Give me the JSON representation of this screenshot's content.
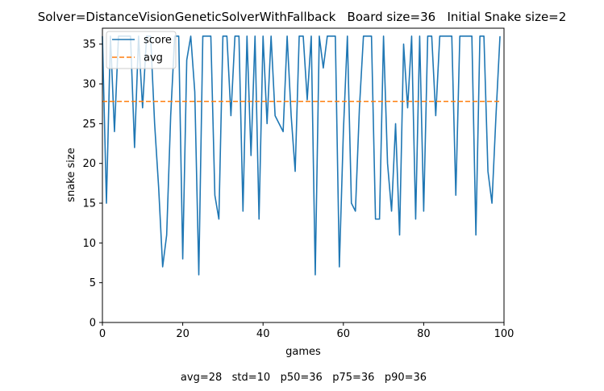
{
  "chart_data": {
    "type": "line",
    "title": "Solver=DistanceVisionGeneticSolverWithFallback   Board size=36   Initial Snake size=2",
    "xlabel": "games",
    "ylabel": "snake size",
    "xlim": [
      0,
      100
    ],
    "ylim": [
      0,
      37
    ],
    "xticks": [
      0,
      20,
      40,
      60,
      80,
      100
    ],
    "yticks": [
      0,
      5,
      10,
      15,
      20,
      25,
      30,
      35
    ],
    "legend_position": "top-left",
    "footer": "avg=28   std=10   p50=36   p75=36   p90=36",
    "series": [
      {
        "name": "score",
        "style": "solid",
        "color": "#1f77b4",
        "x": [
          0,
          1,
          2,
          3,
          4,
          5,
          6,
          7,
          8,
          9,
          10,
          11,
          12,
          13,
          14,
          15,
          16,
          17,
          18,
          19,
          20,
          21,
          22,
          23,
          24,
          25,
          26,
          27,
          28,
          29,
          30,
          31,
          32,
          33,
          34,
          35,
          36,
          37,
          38,
          39,
          40,
          41,
          42,
          43,
          44,
          45,
          46,
          47,
          48,
          49,
          50,
          51,
          52,
          53,
          54,
          55,
          56,
          57,
          58,
          59,
          60,
          61,
          62,
          63,
          64,
          65,
          66,
          67,
          68,
          69,
          70,
          71,
          72,
          73,
          74,
          75,
          76,
          77,
          78,
          79,
          80,
          81,
          82,
          83,
          84,
          85,
          86,
          87,
          88,
          89,
          90,
          91,
          92,
          93,
          94,
          95,
          96,
          97,
          98,
          99
        ],
        "values": [
          36,
          15,
          36,
          24,
          36,
          36,
          36,
          36,
          22,
          36,
          27,
          36,
          36,
          25,
          17,
          7,
          11,
          26,
          36,
          36,
          8,
          33,
          36,
          29,
          6,
          36,
          36,
          36,
          16,
          13,
          36,
          36,
          26,
          36,
          36,
          14,
          36,
          21,
          36,
          13,
          36,
          25,
          36,
          26,
          25,
          24,
          36,
          26,
          19,
          36,
          36,
          28,
          36,
          6,
          36,
          32,
          36,
          36,
          36,
          7,
          24,
          36,
          15,
          14,
          27,
          36,
          36,
          36,
          13,
          13,
          36,
          20,
          14,
          25,
          11,
          35,
          27,
          36,
          13,
          36,
          14,
          36,
          36,
          26,
          36,
          36,
          36,
          36,
          16,
          36,
          36,
          36,
          36,
          11,
          36,
          36,
          19,
          15,
          26,
          36
        ]
      },
      {
        "name": "avg",
        "style": "dashed",
        "color": "#ff7f0e",
        "x": [
          0,
          99
        ],
        "values": [
          27.8,
          27.8
        ]
      }
    ]
  }
}
